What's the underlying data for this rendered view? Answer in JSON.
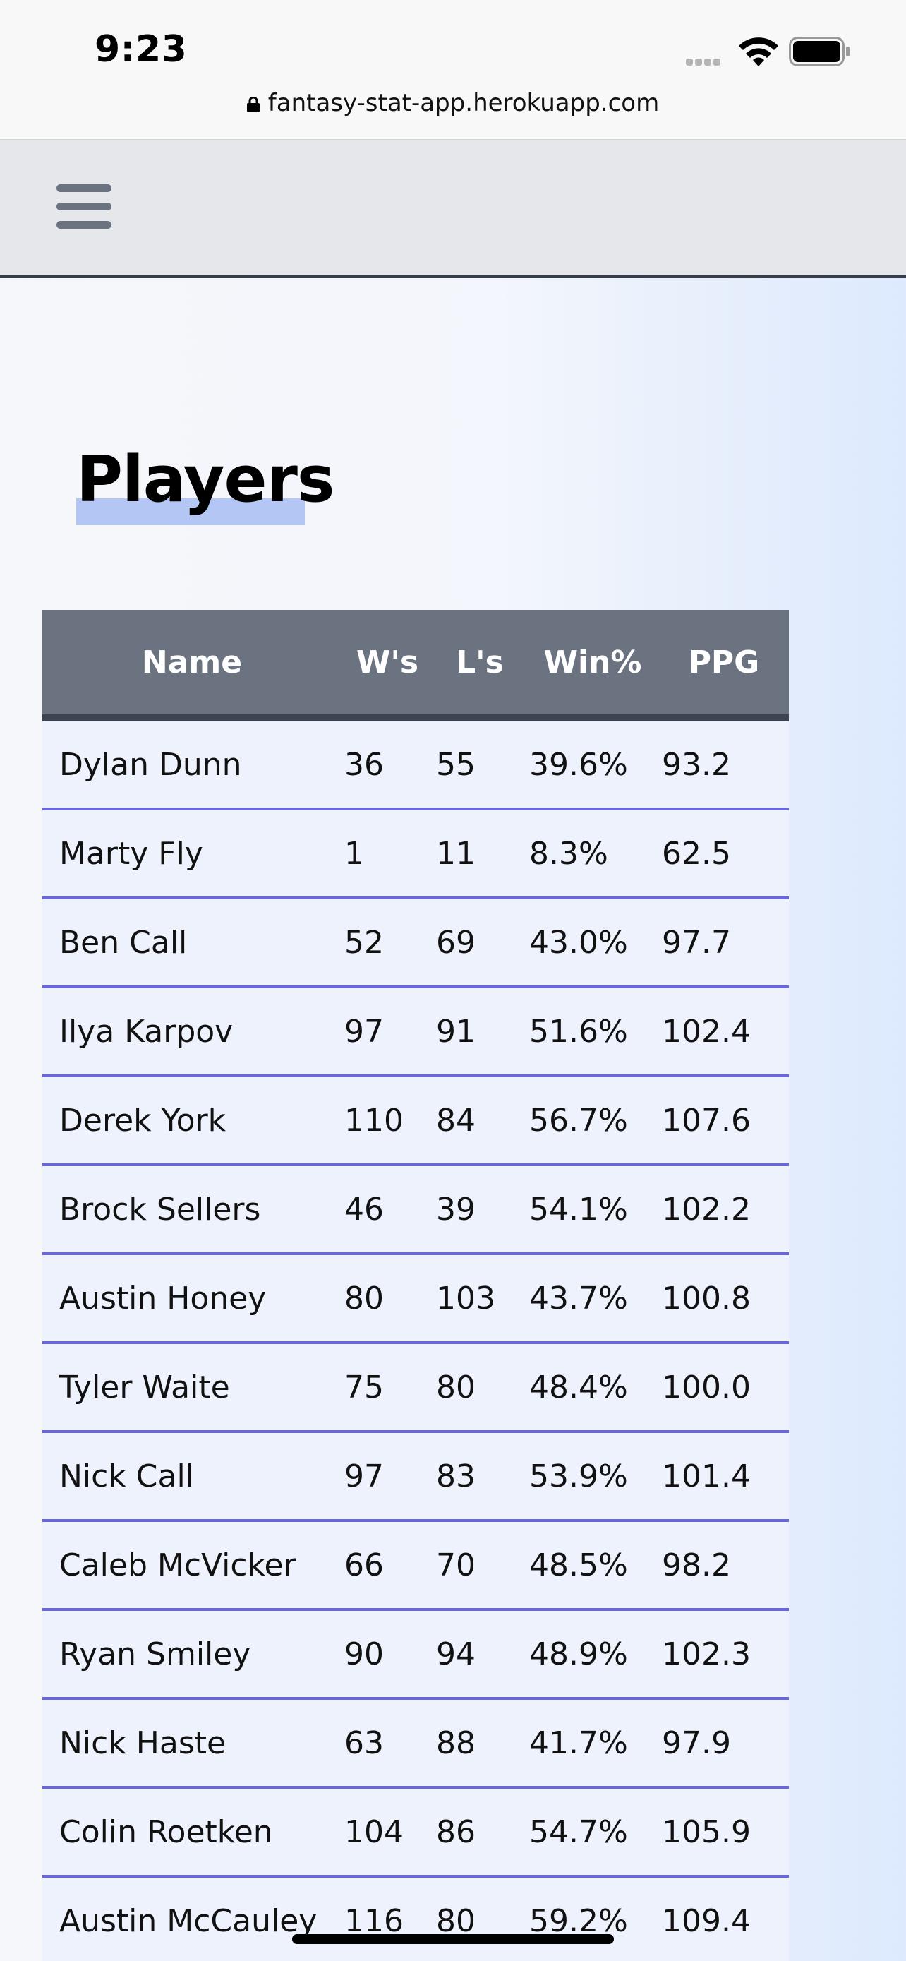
{
  "status_bar": {
    "time": "9:23",
    "url": "fantasy-stat-app.herokuapp.com",
    "icons": [
      "signal-icon",
      "wifi-icon",
      "battery-icon",
      "lock-icon"
    ]
  },
  "navbar": {
    "icon": "menu-icon"
  },
  "page": {
    "title": "Players"
  },
  "table": {
    "headers": [
      "Name",
      "W's",
      "L's",
      "Win%",
      "PPG"
    ],
    "rows": [
      {
        "name": "Dylan Dunn",
        "w": "36",
        "l": "55",
        "win_pct": "39.6%",
        "ppg": "93.2"
      },
      {
        "name": "Marty Fly",
        "w": "1",
        "l": "11",
        "win_pct": "8.3%",
        "ppg": "62.5"
      },
      {
        "name": "Ben Call",
        "w": "52",
        "l": "69",
        "win_pct": "43.0%",
        "ppg": "97.7"
      },
      {
        "name": "Ilya Karpov",
        "w": "97",
        "l": "91",
        "win_pct": "51.6%",
        "ppg": "102.4"
      },
      {
        "name": "Derek York",
        "w": "110",
        "l": "84",
        "win_pct": "56.7%",
        "ppg": "107.6"
      },
      {
        "name": "Brock Sellers",
        "w": "46",
        "l": "39",
        "win_pct": "54.1%",
        "ppg": "102.2"
      },
      {
        "name": "Austin Honey",
        "w": "80",
        "l": "103",
        "win_pct": "43.7%",
        "ppg": "100.8"
      },
      {
        "name": "Tyler Waite",
        "w": "75",
        "l": "80",
        "win_pct": "48.4%",
        "ppg": "100.0"
      },
      {
        "name": "Nick Call",
        "w": "97",
        "l": "83",
        "win_pct": "53.9%",
        "ppg": "101.4"
      },
      {
        "name": "Caleb McVicker",
        "w": "66",
        "l": "70",
        "win_pct": "48.5%",
        "ppg": "98.2"
      },
      {
        "name": "Ryan Smiley",
        "w": "90",
        "l": "94",
        "win_pct": "48.9%",
        "ppg": "102.3"
      },
      {
        "name": "Nick Haste",
        "w": "63",
        "l": "88",
        "win_pct": "41.7%",
        "ppg": "97.9"
      },
      {
        "name": "Colin Roetken",
        "w": "104",
        "l": "86",
        "win_pct": "54.7%",
        "ppg": "105.9"
      },
      {
        "name": "Austin McCauley",
        "w": "116",
        "l": "80",
        "win_pct": "59.2%",
        "ppg": "109.4"
      }
    ]
  },
  "colors": {
    "header_bg": "#6b7280",
    "row_bg": "#eef2fd",
    "row_divider": "#6a68d8",
    "title_highlight": "#b3c6f4"
  }
}
